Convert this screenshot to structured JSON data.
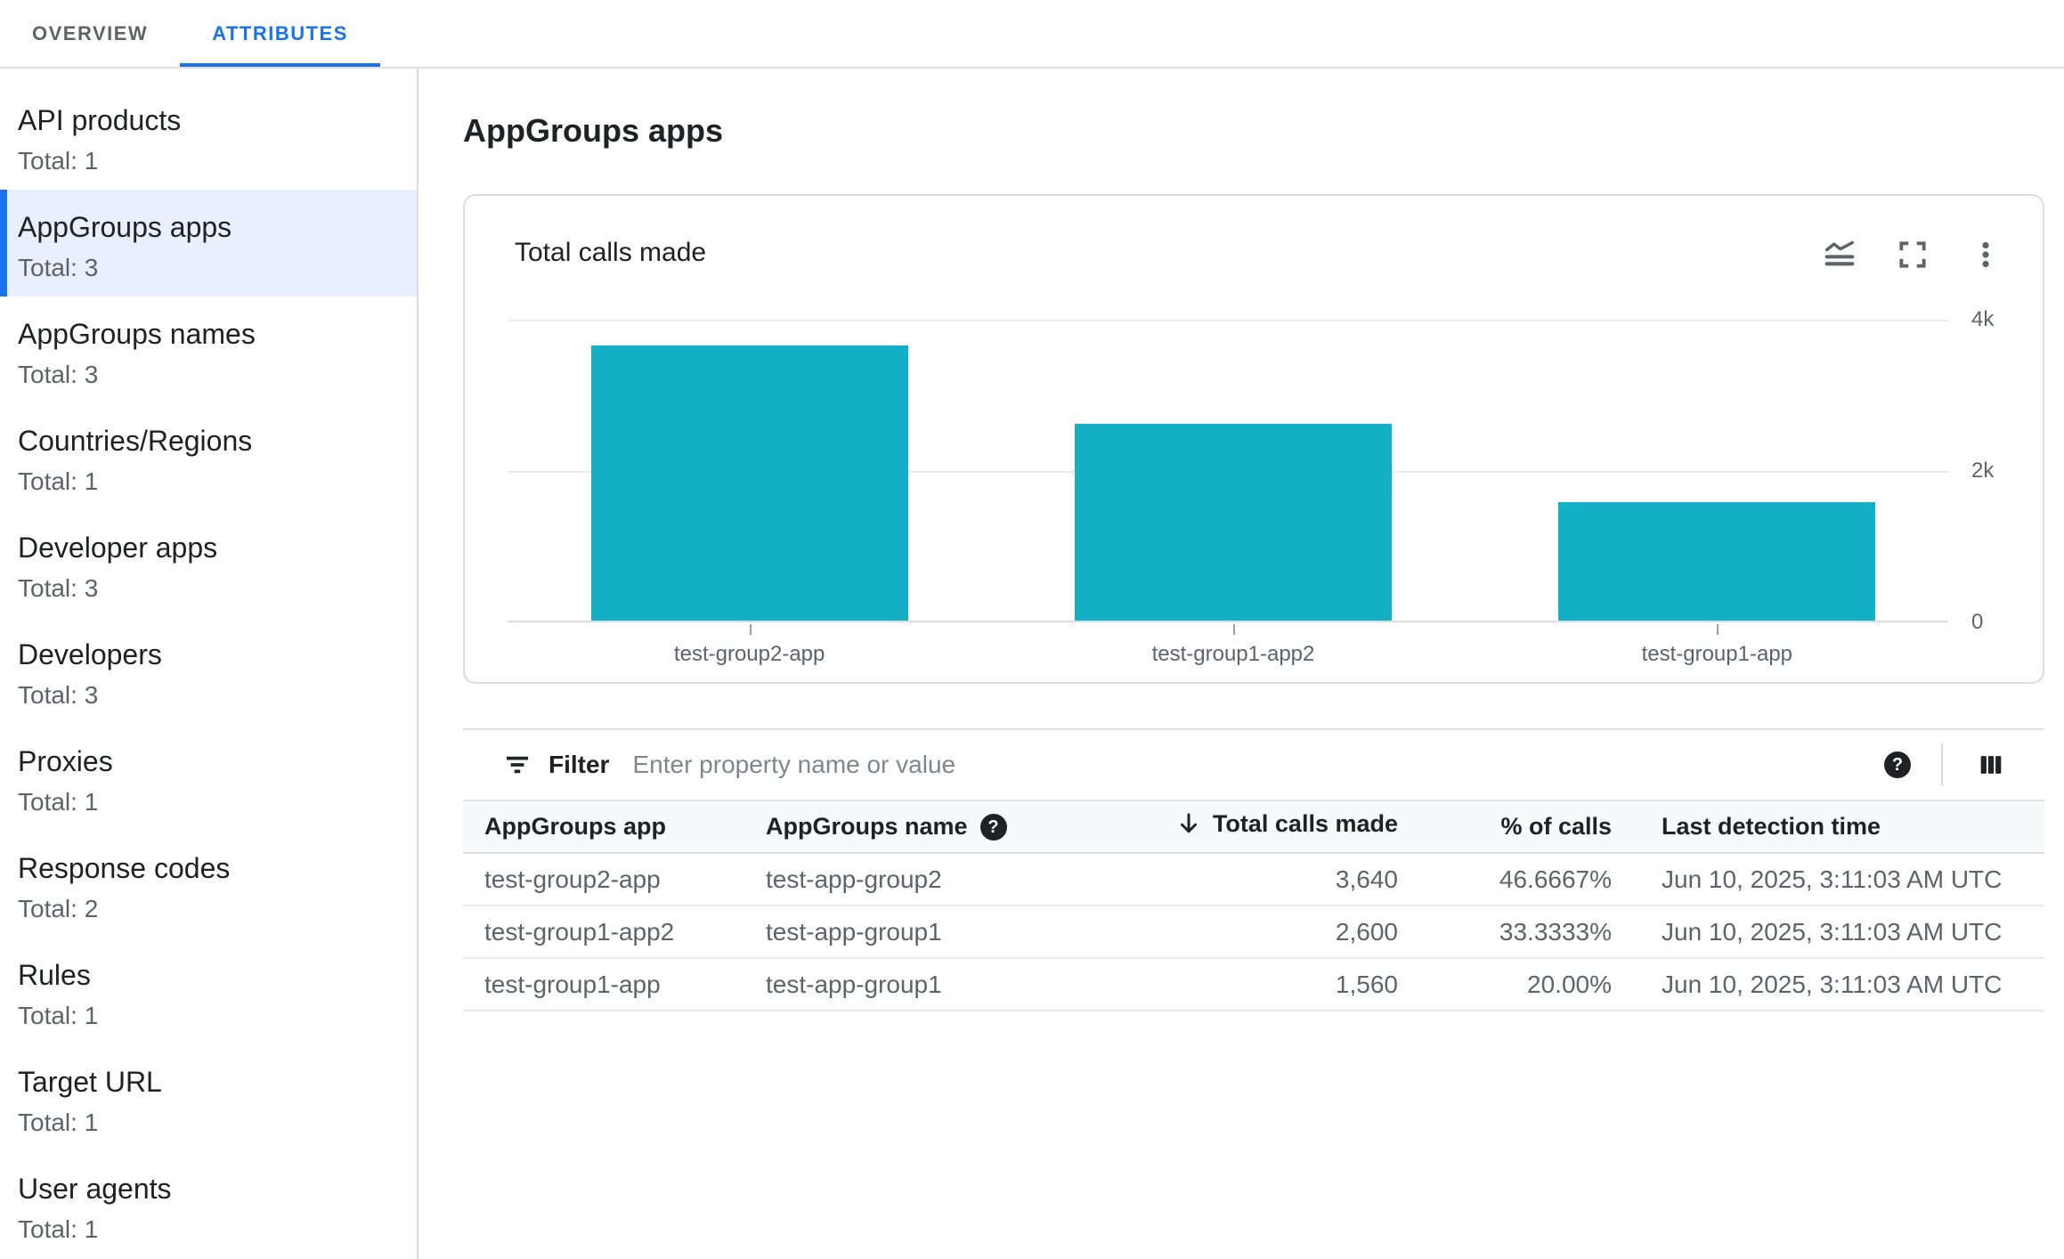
{
  "tabs": [
    {
      "label": "OVERVIEW",
      "active": false
    },
    {
      "label": "ATTRIBUTES",
      "active": true
    }
  ],
  "sidebar": {
    "items": [
      {
        "label": "API products",
        "total": "Total: 1"
      },
      {
        "label": "AppGroups apps",
        "total": "Total: 3",
        "selected": true
      },
      {
        "label": "AppGroups names",
        "total": "Total: 3"
      },
      {
        "label": "Countries/Regions",
        "total": "Total: 1"
      },
      {
        "label": "Developer apps",
        "total": "Total: 3"
      },
      {
        "label": "Developers",
        "total": "Total: 3"
      },
      {
        "label": "Proxies",
        "total": "Total: 1"
      },
      {
        "label": "Response codes",
        "total": "Total: 2"
      },
      {
        "label": "Rules",
        "total": "Total: 1"
      },
      {
        "label": "Target URL",
        "total": "Total: 1"
      },
      {
        "label": "User agents",
        "total": "Total: 1"
      }
    ]
  },
  "main": {
    "title": "AppGroups apps"
  },
  "chart_data": {
    "type": "bar",
    "title": "Total calls made",
    "categories": [
      "test-group2-app",
      "test-group1-app2",
      "test-group1-app"
    ],
    "values": [
      3640,
      2600,
      1560
    ],
    "ylim": [
      0,
      4000
    ],
    "yticks": [
      "4k",
      "2k",
      "0"
    ],
    "xlabel": "",
    "ylabel": "",
    "grid": "horizontal",
    "legend_position": "none",
    "bar_color": "#14b1c6"
  },
  "icons": {
    "help_glyph": "?"
  },
  "filter": {
    "label": "Filter",
    "placeholder": "Enter property name or value",
    "value": ""
  },
  "table": {
    "columns": [
      {
        "label": "AppGroups app"
      },
      {
        "label": "AppGroups name",
        "has_help": true
      },
      {
        "label": "Total calls made",
        "sort": "desc",
        "align": "right"
      },
      {
        "label": "% of calls",
        "align": "right"
      },
      {
        "label": "Last detection time"
      }
    ],
    "rows": [
      {
        "app": "test-group2-app",
        "name": "test-app-group2",
        "calls": "3,640",
        "pct": "46.6667%",
        "last": "Jun 10, 2025, 3:11:03 AM UTC"
      },
      {
        "app": "test-group1-app2",
        "name": "test-app-group1",
        "calls": "2,600",
        "pct": "33.3333%",
        "last": "Jun 10, 2025, 3:11:03 AM UTC"
      },
      {
        "app": "test-group1-app",
        "name": "test-app-group1",
        "calls": "1,560",
        "pct": "20.00%",
        "last": "Jun 10, 2025, 3:11:03 AM UTC"
      }
    ]
  },
  "colors": {
    "accent": "#1a73e8",
    "bar": "#14b1c6",
    "selected_bg": "#e8f0fe"
  }
}
